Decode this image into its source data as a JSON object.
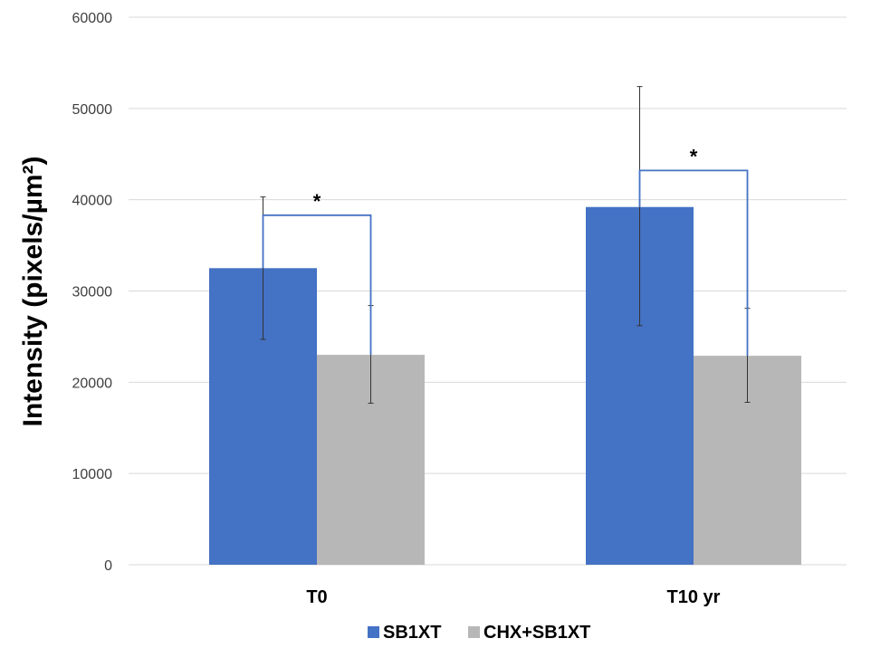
{
  "chart_data": {
    "type": "bar",
    "categories": [
      "T0",
      "T10 yr"
    ],
    "series": [
      {
        "name": "SB1XT",
        "color": "#4472C4",
        "values": [
          32500,
          39200
        ],
        "error_low": [
          24700,
          26200
        ],
        "error_high": [
          40300,
          52400
        ]
      },
      {
        "name": "CHX+SB1XT",
        "color": "#B7B7B7",
        "values": [
          23000,
          22900
        ],
        "error_low": [
          17700,
          17800
        ],
        "error_high": [
          28400,
          28100
        ]
      }
    ],
    "ylabel": "Intensity (pixels/µm²)",
    "ylim": [
      0,
      60000
    ],
    "yticks": [
      0,
      10000,
      20000,
      30000,
      40000,
      50000,
      60000
    ],
    "ytick_labels": [
      "0",
      "10000",
      "20000",
      "30000",
      "40000",
      "50000",
      "60000"
    ],
    "grid": true,
    "legend": "bottom",
    "significance": [
      {
        "category": "T0",
        "label": "*",
        "bracket_level": 38300
      },
      {
        "category": "T10 yr",
        "label": "*",
        "bracket_level": 43200
      }
    ],
    "bracket_color": "#4472C4",
    "gridline_color": "#D9D9D9"
  }
}
